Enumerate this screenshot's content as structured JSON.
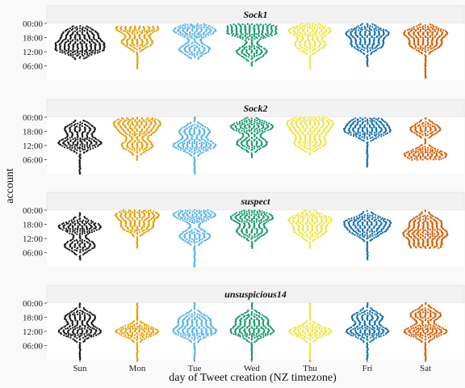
{
  "chart_data": {
    "type": "scatter",
    "subtype": "beeswarm-facets",
    "xlabel": "day of Tweet creation (NZ timezone)",
    "ylabel": "account",
    "categories": [
      "Sun",
      "Mon",
      "Tue",
      "Wed",
      "Thu",
      "Fri",
      "Sat"
    ],
    "ytick_labels": [
      "00:00",
      "18:00",
      "12:00",
      "06:00"
    ],
    "ytick_values": [
      24,
      18,
      12,
      6
    ],
    "ylim": [
      0,
      24
    ],
    "grid": false,
    "legend": "none",
    "colors": [
      "#1a1a1a",
      "#e69f00",
      "#56b4e9",
      "#1a9a6a",
      "#f0e442",
      "#0f6fb0",
      "#d55e00"
    ],
    "panels": [
      {
        "name": "Sock1",
        "distributions": [
          {
            "day": "Sun",
            "peak_hours": [
              13,
              16,
              20
            ],
            "range": [
              9,
              23
            ]
          },
          {
            "day": "Mon",
            "peak_hours": [
              22,
              16
            ],
            "range": [
              5,
              23
            ]
          },
          {
            "day": "Tue",
            "peak_hours": [
              21,
              13
            ],
            "range": [
              9,
              24
            ]
          },
          {
            "day": "Wed",
            "peak_hours": [
              22,
              20,
              12
            ],
            "range": [
              6,
              24
            ]
          },
          {
            "day": "Thu",
            "peak_hours": [
              21,
              15
            ],
            "range": [
              5,
              24
            ]
          },
          {
            "day": "Fri",
            "peak_hours": [
              20,
              15
            ],
            "range": [
              6,
              24
            ]
          },
          {
            "day": "Sat",
            "peak_hours": [
              20,
              15
            ],
            "range": [
              1,
              24
            ]
          }
        ]
      },
      {
        "name": "Sock2",
        "distributions": [
          {
            "day": "Sun",
            "peak_hours": [
              13,
              19
            ],
            "range": [
              0,
              23
            ]
          },
          {
            "day": "Mon",
            "peak_hours": [
              22,
              18,
              12
            ],
            "range": [
              6,
              24
            ]
          },
          {
            "day": "Tue",
            "peak_hours": [
              12,
              18
            ],
            "range": [
              0,
              24
            ]
          },
          {
            "day": "Wed",
            "peak_hours": [
              20,
              13
            ],
            "range": [
              7,
              24
            ]
          },
          {
            "day": "Thu",
            "peak_hours": [
              22,
              18,
              13
            ],
            "range": [
              8,
              24
            ]
          },
          {
            "day": "Fri",
            "peak_hours": [
              18,
              22
            ],
            "range": [
              3,
              24
            ]
          },
          {
            "day": "Sat",
            "peak_hours": [
              8,
              19
            ],
            "range": [
              6,
              24
            ]
          }
        ]
      },
      {
        "name": "suspect",
        "distributions": [
          {
            "day": "Sun",
            "peak_hours": [
              17,
              9
            ],
            "range": [
              3,
              23
            ]
          },
          {
            "day": "Mon",
            "peak_hours": [
              22,
              17
            ],
            "range": [
              8,
              24
            ]
          },
          {
            "day": "Tue",
            "peak_hours": [
              22,
              13
            ],
            "range": [
              0,
              24
            ]
          },
          {
            "day": "Wed",
            "peak_hours": [
              21,
              15
            ],
            "range": [
              8,
              24
            ]
          },
          {
            "day": "Thu",
            "peak_hours": [
              20,
              15
            ],
            "range": [
              8,
              24
            ]
          },
          {
            "day": "Fri",
            "peak_hours": [
              19,
              15
            ],
            "range": [
              3,
              24
            ]
          },
          {
            "day": "Sat",
            "peak_hours": [
              14,
              9,
              19
            ],
            "range": [
              8,
              24
            ]
          }
        ]
      },
      {
        "name": "unsuspicious14",
        "distributions": [
          {
            "day": "Sun",
            "peak_hours": [
              12,
              18
            ],
            "range": [
              0,
              24
            ]
          },
          {
            "day": "Mon",
            "peak_hours": [
              12
            ],
            "range": [
              0,
              24
            ]
          },
          {
            "day": "Tue",
            "peak_hours": [
              12,
              17
            ],
            "range": [
              0,
              24
            ]
          },
          {
            "day": "Wed",
            "peak_hours": [
              12,
              17
            ],
            "range": [
              0,
              24
            ]
          },
          {
            "day": "Thu",
            "peak_hours": [
              12
            ],
            "range": [
              0,
              24
            ]
          },
          {
            "day": "Fri",
            "peak_hours": [
              12,
              18
            ],
            "range": [
              0,
              24
            ]
          },
          {
            "day": "Sat",
            "peak_hours": [
              12,
              19
            ],
            "range": [
              0,
              24
            ]
          }
        ]
      }
    ]
  }
}
